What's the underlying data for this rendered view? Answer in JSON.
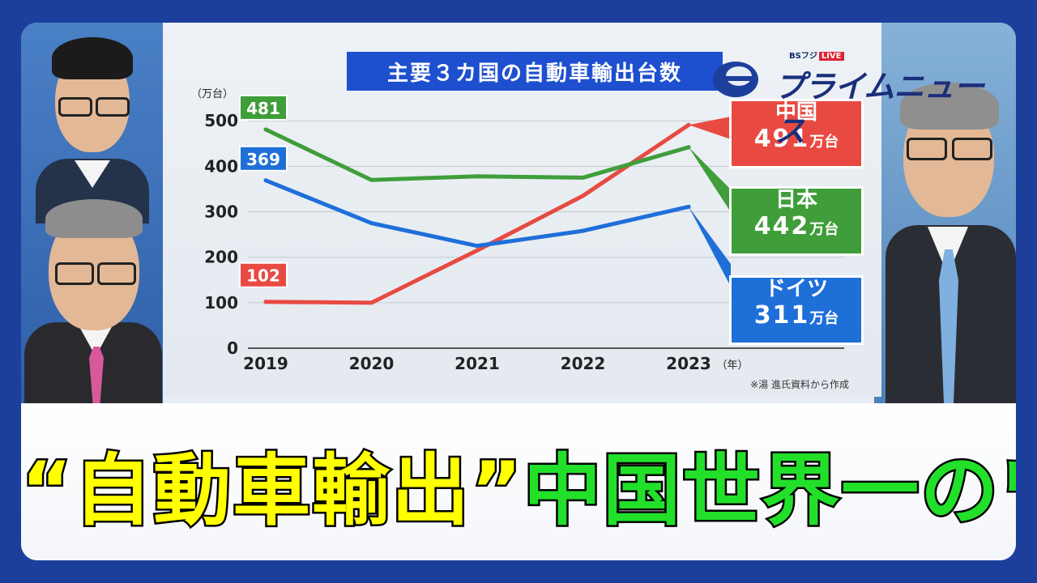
{
  "logo": {
    "network": "BSフジ",
    "live": "LIVE",
    "program": "プライムニュース"
  },
  "caption": {
    "part1": "“自動車輸出”",
    "part2": "中国世界一のワケ"
  },
  "chart_data": {
    "type": "line",
    "title": "主要３カ国の自動車輸出台数",
    "ylabel": "（万台）",
    "xlabel": "（年）",
    "x": [
      "2019",
      "2020",
      "2021",
      "2022",
      "2023"
    ],
    "yticks": [
      "0",
      "100",
      "200",
      "300",
      "400",
      "500"
    ],
    "ylim": [
      0,
      520
    ],
    "grid": true,
    "source": "※湯 進氏資料から作成",
    "series": [
      {
        "name": "中国",
        "color": "#e84a42",
        "values": [
          102,
          100,
          215,
          335,
          491
        ],
        "start_label": "102",
        "end_value": "491",
        "end_unit": "万台"
      },
      {
        "name": "日本",
        "color": "#3f9e3a",
        "values": [
          481,
          370,
          378,
          375,
          442
        ],
        "start_label": "481",
        "end_value": "442",
        "end_unit": "万台"
      },
      {
        "name": "ドイツ",
        "color": "#1f6fd9",
        "values": [
          369,
          275,
          225,
          258,
          311
        ],
        "start_label": "369",
        "end_value": "311",
        "end_unit": "万台"
      }
    ]
  }
}
